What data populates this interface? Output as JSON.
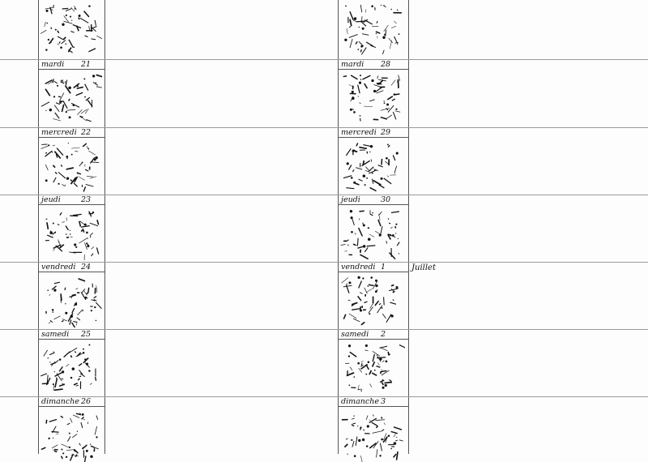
{
  "left_column": [
    {
      "day": "mardi",
      "date": "21"
    },
    {
      "day": "mercredi",
      "date": "22"
    },
    {
      "day": "jeudi",
      "date": "23"
    },
    {
      "day": "vendredi",
      "date": "24"
    },
    {
      "day": "samedi",
      "date": "25"
    },
    {
      "day": "dimanche",
      "date": "26"
    }
  ],
  "right_column": [
    {
      "day": "mardi",
      "date": "28"
    },
    {
      "day": "mercredi",
      "date": "29"
    },
    {
      "day": "jeudi",
      "date": "30"
    },
    {
      "day": "vendredi",
      "date": "1"
    },
    {
      "day": "samedi",
      "date": "2"
    },
    {
      "day": "dimanche",
      "date": "3"
    }
  ],
  "month_note": "Juillet"
}
